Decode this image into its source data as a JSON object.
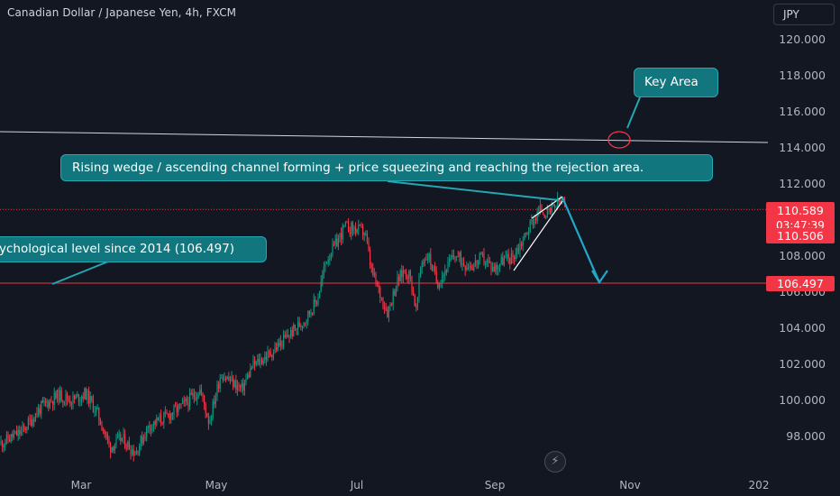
{
  "header": {
    "title": "Canadian Dollar / Japanese Yen, 4h, FXCM",
    "currency": "JPY"
  },
  "annotations": {
    "key_area": "Key Area",
    "wedge_note": "Rising wedge / ascending channel  forming + price squeezing and reaching the rejection area.",
    "psych_note": "ychological level since 2014 (106.497)"
  },
  "price_tags": {
    "last_price": "110.589",
    "countdown": "03:47:39",
    "close_level": "110.506",
    "support_level": "106.497"
  },
  "colors": {
    "background": "#131722",
    "up_candle": "#089981",
    "down_candle": "#f23645",
    "callout_fill": "#12767f",
    "callout_border": "#24a6b3",
    "resistance_line": "#d1d4dc",
    "support_line": "#f23645",
    "arrow": "#22a7c9"
  },
  "logo_icon": "lightning-icon",
  "chart_data": {
    "type": "candlestick",
    "instrument": "Canadian Dollar / Japanese Yen",
    "timeframe": "4h",
    "source": "FXCM",
    "y_axis": {
      "ticks": [
        98,
        100,
        102,
        104,
        106,
        108,
        110,
        112,
        114,
        116,
        118,
        120
      ],
      "tick_labels": [
        "98.000",
        "100.000",
        "102.000",
        "104.000",
        "106.000",
        "108.000",
        "110.000",
        "112.000",
        "114.000",
        "116.000",
        "118.000",
        "120.000"
      ],
      "range": [
        97,
        121
      ]
    },
    "x_axis": {
      "tick_labels": [
        "Mar",
        "May",
        "Jul",
        "Sep",
        "Nov",
        "202"
      ]
    },
    "price_path": [
      {
        "x": 0,
        "y": 97.6
      },
      {
        "x": 25,
        "y": 98.3
      },
      {
        "x": 45,
        "y": 99.6
      },
      {
        "x": 65,
        "y": 100.3
      },
      {
        "x": 80,
        "y": 100.0
      },
      {
        "x": 95,
        "y": 100.4
      },
      {
        "x": 108,
        "y": 99.3
      },
      {
        "x": 122,
        "y": 97.4
      },
      {
        "x": 135,
        "y": 97.9
      },
      {
        "x": 150,
        "y": 97.1
      },
      {
        "x": 165,
        "y": 98.6
      },
      {
        "x": 185,
        "y": 99.1
      },
      {
        "x": 205,
        "y": 99.8
      },
      {
        "x": 222,
        "y": 100.6
      },
      {
        "x": 232,
        "y": 98.8
      },
      {
        "x": 245,
        "y": 101.5
      },
      {
        "x": 258,
        "y": 101.0
      },
      {
        "x": 268,
        "y": 100.6
      },
      {
        "x": 280,
        "y": 101.9
      },
      {
        "x": 300,
        "y": 102.6
      },
      {
        "x": 320,
        "y": 103.6
      },
      {
        "x": 340,
        "y": 104.6
      },
      {
        "x": 352,
        "y": 105.6
      },
      {
        "x": 362,
        "y": 107.8
      },
      {
        "x": 372,
        "y": 108.6
      },
      {
        "x": 382,
        "y": 109.6
      },
      {
        "x": 395,
        "y": 109.5
      },
      {
        "x": 405,
        "y": 109.3
      },
      {
        "x": 412,
        "y": 107.2
      },
      {
        "x": 420,
        "y": 106.1
      },
      {
        "x": 430,
        "y": 104.9
      },
      {
        "x": 440,
        "y": 106.5
      },
      {
        "x": 448,
        "y": 107.2
      },
      {
        "x": 455,
        "y": 106.9
      },
      {
        "x": 462,
        "y": 104.9
      },
      {
        "x": 467,
        "y": 107.6
      },
      {
        "x": 475,
        "y": 108.1
      },
      {
        "x": 485,
        "y": 106.5
      },
      {
        "x": 495,
        "y": 107.3
      },
      {
        "x": 505,
        "y": 108.1
      },
      {
        "x": 515,
        "y": 107.6
      },
      {
        "x": 525,
        "y": 107.5
      },
      {
        "x": 535,
        "y": 107.9
      },
      {
        "x": 548,
        "y": 107.3
      },
      {
        "x": 558,
        "y": 107.8
      },
      {
        "x": 568,
        "y": 107.9
      },
      {
        "x": 580,
        "y": 108.9
      },
      {
        "x": 590,
        "y": 109.9
      },
      {
        "x": 600,
        "y": 110.6
      },
      {
        "x": 608,
        "y": 110.3
      },
      {
        "x": 616,
        "y": 110.8
      },
      {
        "x": 623,
        "y": 111.1
      },
      {
        "x": 628,
        "y": 110.6
      }
    ],
    "levels": {
      "resistance_trendline": [
        {
          "x": 0,
          "y": 114.9
        },
        {
          "x": 852,
          "y": 114.3
        }
      ],
      "last_price_line": 110.589,
      "support_line": 106.497
    },
    "grid": false,
    "legend": "none"
  }
}
